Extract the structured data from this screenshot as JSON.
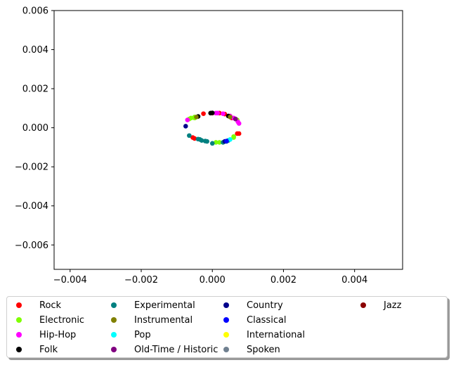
{
  "chart_data": {
    "type": "scatter",
    "title": "",
    "xlabel": "",
    "ylabel": "",
    "xlim": [
      -0.00445,
      0.00535
    ],
    "ylim": [
      -0.00725,
      0.006
    ],
    "xticks": [
      -0.004,
      -0.002,
      0.0,
      0.002,
      0.004
    ],
    "xtick_labels": [
      "−0.004",
      "−0.002",
      "0.000",
      "0.002",
      "0.004"
    ],
    "yticks": [
      0.006,
      0.004,
      0.002,
      0.0,
      -0.002,
      -0.004,
      -0.006
    ],
    "ytick_labels": [
      "0.006",
      "0.004",
      "0.002",
      "0.000",
      "−0.002",
      "−0.004",
      "−0.006"
    ],
    "grid": false,
    "legend_placement": "bottom",
    "series": [
      {
        "name": "Rock",
        "color": "#ff0000",
        "points": [
          [
            -0.00025,
            0.00072
          ],
          [
            0.0002,
            0.00075
          ],
          [
            0.00035,
            0.0007
          ],
          [
            0.00055,
            0.0005
          ],
          [
            0.0007,
            -0.0003
          ],
          [
            0.00075,
            -0.0003
          ],
          [
            -0.00055,
            -0.0005
          ],
          [
            -0.0005,
            -0.00055
          ],
          [
            0.0,
            0.00075
          ]
        ]
      },
      {
        "name": "Electronic",
        "color": "#7fff00",
        "points": [
          [
            -0.00065,
            0.00045
          ],
          [
            -0.0006,
            0.0005
          ],
          [
            -0.0005,
            0.00055
          ],
          [
            0.0001,
            -0.00075
          ],
          [
            0.0002,
            -0.00075
          ],
          [
            0.0006,
            -0.0005
          ],
          [
            0.0006,
            -0.00045
          ],
          [
            0.0007,
            0.0004
          ],
          [
            -0.0005,
            0.0005
          ]
        ]
      },
      {
        "name": "Hip-Hop",
        "color": "#ff00ff",
        "points": [
          [
            0.0001,
            0.00075
          ],
          [
            0.00015,
            0.00075
          ],
          [
            0.0003,
            0.00072
          ],
          [
            0.0005,
            0.0006
          ],
          [
            0.0006,
            0.0005
          ],
          [
            0.00065,
            0.00045
          ],
          [
            0.00072,
            0.0003
          ],
          [
            0.00075,
            0.00022
          ],
          [
            -0.0007,
            0.0004
          ]
        ]
      },
      {
        "name": "Folk",
        "color": "#000000",
        "points": [
          [
            -5e-05,
            0.00075
          ],
          [
            0.0,
            0.00076
          ],
          [
            0.00045,
            0.0006
          ],
          [
            -0.0004,
            0.00058
          ]
        ]
      },
      {
        "name": "Experimental",
        "color": "#008080",
        "points": [
          [
            -0.00065,
            -0.0004
          ],
          [
            -0.0004,
            -0.00058
          ],
          [
            -0.00035,
            -0.0006
          ],
          [
            -0.0003,
            -0.00065
          ],
          [
            -0.0002,
            -0.00068
          ],
          [
            0.0,
            -0.0008
          ],
          [
            0.0003,
            -0.00075
          ],
          [
            0.0004,
            -0.0007
          ],
          [
            0.00045,
            -0.00065
          ],
          [
            -0.00015,
            -0.0007
          ]
        ]
      },
      {
        "name": "Instrumental",
        "color": "#808000",
        "points": [
          [
            -0.00045,
            0.00055
          ],
          [
            0.0005,
            0.00055
          ]
        ]
      },
      {
        "name": "Pop",
        "color": "#00ffff",
        "points": [
          [
            0.0005,
            -0.0006
          ]
        ]
      },
      {
        "name": "Old-Time / Historic",
        "color": "#800080",
        "points": [
          [
            0.00065,
            0.00045
          ]
        ]
      },
      {
        "name": "Country",
        "color": "#00008b",
        "points": [
          [
            -0.00075,
            8e-05
          ],
          [
            0.00035,
            -0.0007
          ]
        ]
      },
      {
        "name": "Classical",
        "color": "#0000ff",
        "points": [
          [
            0.0004,
            -0.00068
          ]
        ]
      },
      {
        "name": "International",
        "color": "#ffff00",
        "points": []
      },
      {
        "name": "Spoken",
        "color": "#708090",
        "points": []
      },
      {
        "name": "Jazz",
        "color": "#8b0000",
        "points": []
      }
    ]
  }
}
